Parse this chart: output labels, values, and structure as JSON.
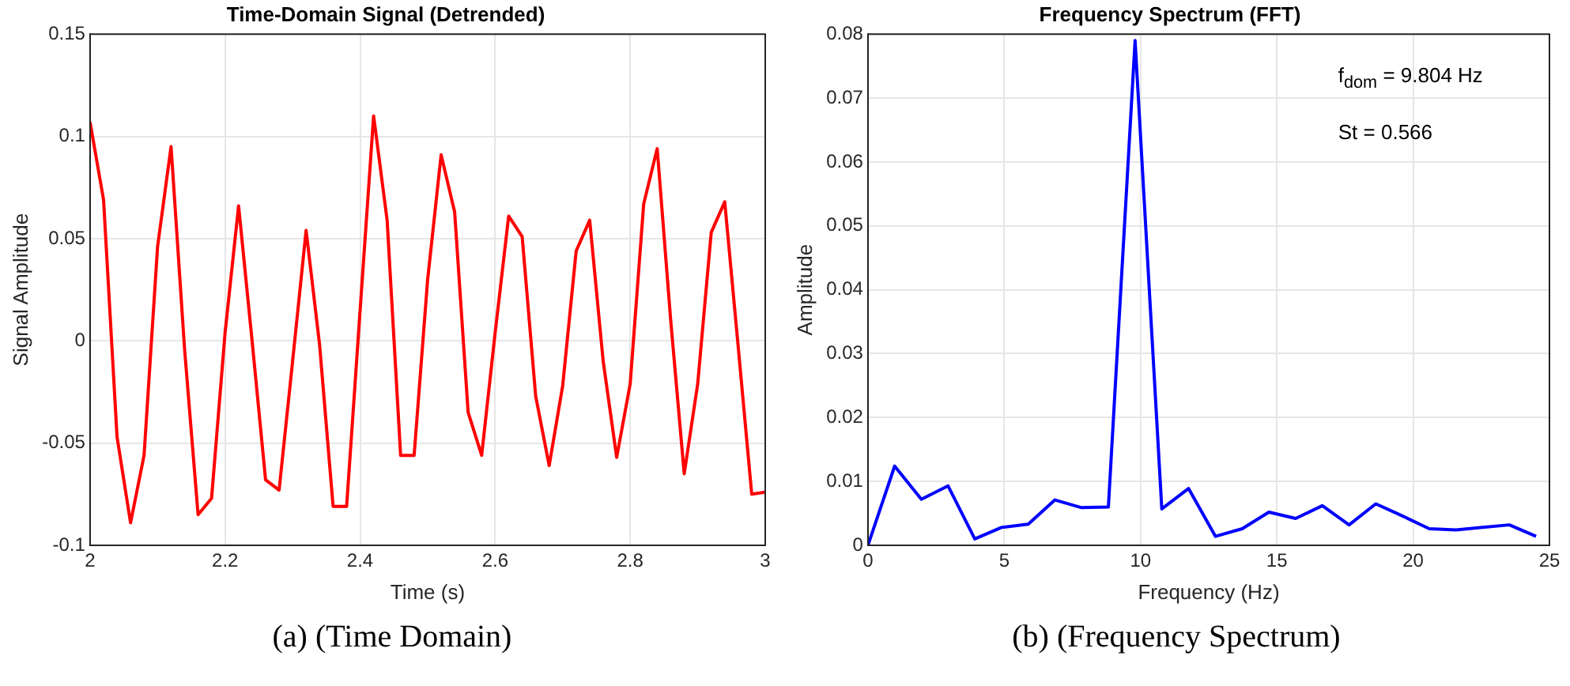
{
  "chart_data": [
    {
      "type": "line",
      "title": "Time-Domain Signal (Detrended)",
      "xlabel": "Time (s)",
      "ylabel": "Signal Amplitude",
      "color": "#ff0000",
      "grid": true,
      "x": [
        2,
        2.02,
        2.04,
        2.06,
        2.08,
        2.1,
        2.12,
        2.14,
        2.16,
        2.18,
        2.2,
        2.22,
        2.24,
        2.26,
        2.28,
        2.3,
        2.32,
        2.34,
        2.36,
        2.38,
        2.4,
        2.42,
        2.44,
        2.46,
        2.48,
        2.5,
        2.52,
        2.54,
        2.56,
        2.58,
        2.6,
        2.62,
        2.64,
        2.66,
        2.68,
        2.7,
        2.72,
        2.74,
        2.76,
        2.78,
        2.8,
        2.82,
        2.84,
        2.86,
        2.88,
        2.9,
        2.92,
        2.94,
        2.96,
        2.98,
        3
      ],
      "values": [
        0.107,
        0.069,
        -0.047,
        -0.089,
        -0.056,
        0.046,
        0.095,
        -0.004,
        -0.085,
        -0.077,
        0.004,
        0.066,
        0,
        -0.068,
        -0.073,
        -0.01,
        0.054,
        -0.002,
        -0.081,
        -0.081,
        0.015,
        0.11,
        0.059,
        -0.056,
        -0.056,
        0.03,
        0.091,
        0.063,
        -0.035,
        -0.056,
        0.004,
        0.061,
        0.051,
        -0.027,
        -0.061,
        -0.022,
        0.044,
        0.059,
        -0.01,
        -0.057,
        -0.021,
        0.067,
        0.094,
        0.01,
        -0.065,
        -0.021,
        0.053,
        0.068,
        -0.003,
        -0.075,
        -0.074
      ],
      "xlim": [
        2,
        3
      ],
      "xticks": [
        2,
        2.2,
        2.4,
        2.6,
        2.8,
        3
      ],
      "ylim": [
        -0.1,
        0.15
      ],
      "yticks": [
        -0.1,
        -0.05,
        0,
        0.05,
        0.1,
        0.15
      ],
      "annotations": [
        "(a) (Time Domain)"
      ]
    },
    {
      "type": "line",
      "title": "Frequency Spectrum (FFT)",
      "xlabel": "Frequency (Hz)",
      "ylabel": "Amplitude",
      "color": "#0000ff",
      "grid": true,
      "x": [
        0,
        0.98,
        1.96,
        2.94,
        3.92,
        4.9,
        5.88,
        6.86,
        7.84,
        8.82,
        9.8,
        10.78,
        11.76,
        12.75,
        13.73,
        14.71,
        15.69,
        16.67,
        17.65,
        18.63,
        19.61,
        20.59,
        21.57,
        22.55,
        23.53,
        24.51
      ],
      "values": [
        0,
        0.0124,
        0.0072,
        0.0093,
        0.001,
        0.0028,
        0.0033,
        0.0071,
        0.0059,
        0.006,
        0.079,
        0.0057,
        0.0089,
        0.0014,
        0.0026,
        0.0052,
        0.0042,
        0.0062,
        0.0032,
        0.0065,
        0.0046,
        0.0026,
        0.0024,
        0.0028,
        0.0032,
        0.0014
      ],
      "xlim": [
        0,
        25
      ],
      "xticks": [
        0,
        5,
        10,
        15,
        20,
        25
      ],
      "ylim": [
        0,
        0.08
      ],
      "yticks": [
        0,
        0.01,
        0.02,
        0.03,
        0.04,
        0.05,
        0.06,
        0.07,
        0.08
      ],
      "annotations": [
        "f$_{dom}$ = 9.804 Hz",
        "St = 0.566",
        "(b) (Frequency Spectrum)"
      ]
    }
  ]
}
